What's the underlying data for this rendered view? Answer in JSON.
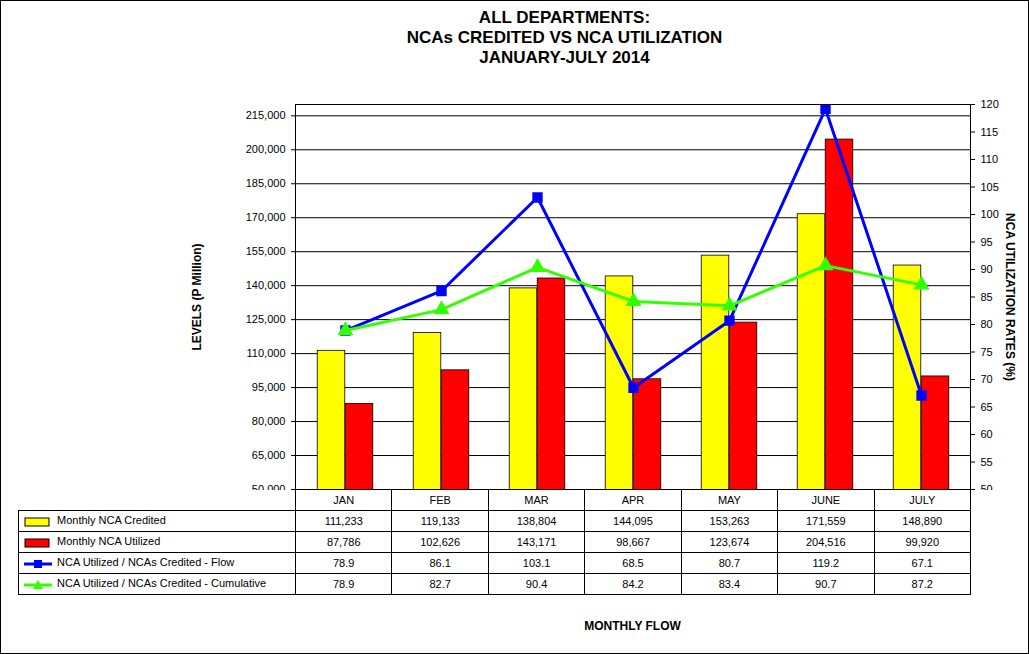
{
  "chart_data": {
    "type": "bar",
    "title": "ALL DEPARTMENTS:\nNCAs CREDITED VS NCA UTILIZATION\nJANUARY-JULY 2014",
    "x_label": "MONTHLY FLOW",
    "y_label": "LEVELS (P Million)",
    "y2_label": "NCA UTILIZATION RATES (%)",
    "categories": [
      "JAN",
      "FEB",
      "MAR",
      "APR",
      "MAY",
      "JUNE",
      "JULY"
    ],
    "ylim": [
      50000,
      220000
    ],
    "yticks": [
      {
        "value": 50000,
        "label": "50,000"
      },
      {
        "value": 65000,
        "label": "65,000"
      },
      {
        "value": 80000,
        "label": "80,000"
      },
      {
        "value": 95000,
        "label": "95,000"
      },
      {
        "value": 110000,
        "label": "110,000"
      },
      {
        "value": 125000,
        "label": "125,000"
      },
      {
        "value": 140000,
        "label": "140,000"
      },
      {
        "value": 155000,
        "label": "155,000"
      },
      {
        "value": 170000,
        "label": "170,000"
      },
      {
        "value": 185000,
        "label": "185,000"
      },
      {
        "value": 200000,
        "label": "200,000"
      },
      {
        "value": 215000,
        "label": "215,000"
      }
    ],
    "y2lim": [
      50,
      120
    ],
    "y2ticks": [
      50,
      55,
      60,
      65,
      70,
      75,
      80,
      85,
      90,
      95,
      100,
      105,
      110,
      115,
      120
    ],
    "grid": true,
    "series": [
      {
        "name": "Monthly NCA Credited",
        "type": "bar",
        "color": "#ffff00",
        "values": [
          111233,
          119133,
          138804,
          144095,
          153263,
          171559,
          148890
        ],
        "value_labels": [
          "111,233",
          "119,133",
          "138,804",
          "144,095",
          "153,263",
          "171,559",
          "148,890"
        ]
      },
      {
        "name": "Monthly NCA Utilized",
        "type": "bar",
        "color": "#ff0000",
        "values": [
          87786,
          102626,
          143171,
          98667,
          123674,
          204516,
          99920
        ],
        "value_labels": [
          "87,786",
          "102,626",
          "143,171",
          "98,667",
          "123,674",
          "204,516",
          "99,920"
        ]
      },
      {
        "name": "NCA Utilized / NCAs Credited - Flow",
        "type": "line",
        "axis": "y2",
        "color": "#0000ff",
        "marker": "square",
        "values": [
          78.9,
          86.1,
          103.1,
          68.5,
          80.7,
          119.2,
          67.1
        ]
      },
      {
        "name": "NCA Utilized / NCAs Credited - Cumulative",
        "type": "line",
        "axis": "y2",
        "color": "#33ff00",
        "marker": "triangle",
        "values": [
          78.9,
          82.7,
          90.4,
          84.2,
          83.4,
          90.7,
          87.2
        ]
      }
    ]
  }
}
